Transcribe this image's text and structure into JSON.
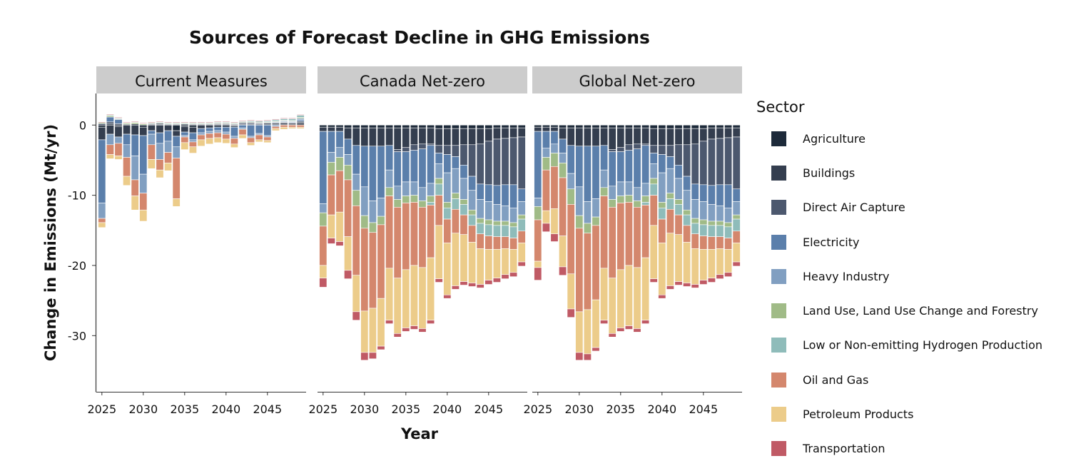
{
  "chart_data": {
    "type": "bar",
    "stacked": true,
    "title": "Sources of Forecast Decline in GHG Emissions",
    "xlabel": "Year",
    "ylabel": "Change in Emissions (Mt/yr)",
    "ylim": [
      -38,
      4.5
    ],
    "yticks": [
      0,
      -10,
      -20,
      -30
    ],
    "xticks": [
      2025,
      2030,
      2035,
      2040,
      2045
    ],
    "x": [
      2025,
      2026,
      2027,
      2028,
      2029,
      2030,
      2031,
      2032,
      2033,
      2034,
      2035,
      2036,
      2037,
      2038,
      2039,
      2040,
      2041,
      2042,
      2043,
      2044,
      2045,
      2046,
      2047,
      2048,
      2049
    ],
    "legend": {
      "title": "Sector",
      "position": "right"
    },
    "sectors": [
      {
        "name": "Agriculture",
        "color": "#1d2a3a"
      },
      {
        "name": "Buildings",
        "color": "#343e4f"
      },
      {
        "name": "Direct Air Capture",
        "color": "#4c586e"
      },
      {
        "name": "Electricity",
        "color": "#5b7fab"
      },
      {
        "name": "Heavy Industry",
        "color": "#819fc1"
      },
      {
        "name": "Land Use, Land Use Change and Forestry",
        "color": "#a0bb87"
      },
      {
        "name": "Low or Non-emitting Hydrogen Production",
        "color": "#8fbcba"
      },
      {
        "name": "Oil and Gas",
        "color": "#d4876d"
      },
      {
        "name": "Petroleum Products",
        "color": "#eccc8a"
      },
      {
        "name": "Transportation",
        "color": "#c05a65"
      }
    ],
    "panels": [
      {
        "name": "Current Measures",
        "series": [
          {
            "name": "Agriculture",
            "values": [
              -0.3,
              0.15,
              -0.2,
              0.1,
              0.15,
              -0.3,
              0.1,
              0.1,
              0.05,
              -0.8,
              -0.2,
              -0.3,
              0.05,
              0.05,
              0.1,
              0.1,
              -0.1,
              0.05,
              0.05,
              0.05,
              0.05,
              0.05,
              0.05,
              0.05,
              0.15
            ]
          },
          {
            "name": "Buildings",
            "values": [
              -1.8,
              -1.3,
              -1.5,
              -1.3,
              -1.4,
              -1.2,
              -0.8,
              -1.1,
              -0.8,
              -0.8,
              -0.8,
              -0.8,
              -0.5,
              -0.4,
              -0.3,
              -0.3,
              -0.2,
              0.15,
              0.15,
              0.15,
              0.2,
              0.2,
              0.25,
              0.2,
              0.25
            ]
          },
          {
            "name": "Direct Air Capture",
            "values": [
              0.2,
              0.3,
              0.2,
              0,
              0,
              0,
              0.1,
              0.15,
              0.1,
              0.1,
              0.15,
              0.1,
              0.1,
              0.1,
              0.1,
              0.1,
              0.1,
              0.15,
              0.15,
              0.1,
              0.1,
              0.1,
              0.1,
              0.1,
              0.15
            ]
          },
          {
            "name": "Electricity",
            "values": [
              -9,
              0.7,
              0.6,
              -1.5,
              -3,
              -5.5,
              -0.5,
              -1.5,
              -1.5,
              -1.5,
              -0.5,
              -1,
              -0.6,
              -0.5,
              -0.5,
              -0.7,
              -1.3,
              -0.4,
              -1.6,
              -1.2,
              -1.5,
              0.1,
              0.1,
              0.1,
              0.2
            ]
          },
          {
            "name": "Heavy Industry",
            "values": [
              -2.2,
              -1.5,
              -0.9,
              -1.8,
              -3.4,
              -2.7,
              -1.5,
              -2.3,
              -1.6,
              -1.6,
              -0.2,
              -0.3,
              -0.3,
              -0.3,
              -0.3,
              -0.3,
              -0.3,
              -0.2,
              -0.2,
              -0.2,
              -0.2,
              -0.2,
              0.1,
              0.1,
              0.2
            ]
          },
          {
            "name": "Land Use, Land Use Change and Forestry",
            "values": [
              0.15,
              0.2,
              0.1,
              0.15,
              0.2,
              0.15,
              0.1,
              0.1,
              0.1,
              0.1,
              0.1,
              0.1,
              0.1,
              0.1,
              0.1,
              0.1,
              0.1,
              0.1,
              0.1,
              0.1,
              0.1,
              0.1,
              0.1,
              0.1,
              0.15
            ]
          },
          {
            "name": "Low or Non-emitting Hydrogen Production",
            "values": [
              0,
              0.1,
              0.1,
              0.05,
              0.05,
              0.05,
              0.05,
              0.1,
              0.1,
              0.1,
              0.1,
              0.1,
              0.1,
              0.1,
              0.1,
              0.1,
              0.1,
              0.1,
              0.15,
              0.15,
              0.15,
              0.2,
              0.2,
              0.25,
              0.3
            ]
          },
          {
            "name": "Oil and Gas",
            "values": [
              -0.6,
              -1.4,
              -1.8,
              -2.7,
              -2.3,
              -2.4,
              -2.1,
              -1.5,
              -1.5,
              -5.8,
              -0.8,
              -0.7,
              -0.7,
              -0.7,
              -0.7,
              -0.7,
              -0.8,
              -0.8,
              -0.7,
              -0.7,
              -0.5,
              -0.3,
              -0.3,
              -0.3,
              -0.3
            ]
          },
          {
            "name": "Petroleum Products",
            "values": [
              -0.7,
              -0.6,
              -0.5,
              -1.3,
              -2,
              -1.6,
              -1.3,
              -1.1,
              -1.1,
              -1.1,
              -1,
              -0.9,
              -0.9,
              -0.8,
              -0.7,
              -0.6,
              -0.5,
              -0.5,
              -0.4,
              -0.3,
              -0.3,
              -0.3,
              -0.3,
              -0.2,
              -0.2
            ]
          },
          {
            "name": "Transportation",
            "values": [
              0.1,
              0.1,
              0.1,
              0.1,
              0.1,
              0.1,
              0.1,
              0.1,
              0.1,
              0.1,
              0.1,
              0.1,
              0.1,
              0.1,
              0.1,
              0.1,
              0.1,
              0.1,
              0.1,
              0.1,
              0.1,
              0.1,
              0.1,
              0.1,
              0.1
            ]
          }
        ]
      },
      {
        "name": "Canada Net-zero",
        "series": [
          {
            "name": "Agriculture",
            "values": [
              -0.3,
              -0.3,
              -0.3,
              -0.4,
              -0.4,
              -0.4,
              -0.4,
              -0.4,
              -0.4,
              -0.4,
              -0.4,
              -0.4,
              -0.4,
              -0.4,
              -0.5,
              -0.5,
              -0.5,
              -0.5,
              -0.5,
              -0.5,
              -0.5,
              -0.4,
              -0.4,
              -0.4,
              -0.4
            ]
          },
          {
            "name": "Buildings",
            "values": [
              -0.6,
              -0.6,
              -0.6,
              -1.6,
              -2.5,
              -2.6,
              -2.6,
              -2.6,
              -2.5,
              -3.1,
              -2.8,
              -2.4,
              -2.3,
              -2.3,
              -2.4,
              -2.4,
              -2.4,
              -2.3,
              -2.3,
              -2.2,
              -1.8,
              -1.6,
              -1.5,
              -1.4,
              -1.3
            ]
          },
          {
            "name": "Direct Air Capture",
            "values": [
              0,
              0,
              0,
              0,
              0,
              0,
              0,
              0,
              0,
              -0.3,
              -0.6,
              -0.8,
              -0.7,
              -0.2,
              -1.1,
              -1.3,
              -1.6,
              -2.9,
              -4.5,
              -5.7,
              -6.2,
              -6.6,
              -6.6,
              -6.7,
              -7.4
            ]
          },
          {
            "name": "Electricity",
            "values": [
              -10.3,
              -3,
              -2.3,
              -2.2,
              -4.1,
              -5.8,
              -7.8,
              -7.4,
              -3.5,
              -4.9,
              -4.3,
              -4.5,
              -5.5,
              -5.4,
              -1.5,
              -2.6,
              -1.7,
              -1.9,
              -2,
              -2.2,
              -2.4,
              -2.7,
              -3,
              -3.3,
              -1.8
            ]
          },
          {
            "name": "Heavy Industry",
            "values": [
              -1.3,
              -1.4,
              -1.4,
              -1.5,
              -2.3,
              -4.1,
              -3.1,
              -2.6,
              -2.5,
              -1.9,
              -2,
              -1.9,
              -1.9,
              -1.8,
              -2.1,
              -4.2,
              -3.5,
              -3,
              -2.8,
              -2.7,
              -2.6,
              -2.4,
              -2.2,
              -2.1,
              -1.9
            ]
          },
          {
            "name": "Land Use, Land Use Change and Forestry",
            "values": [
              -1.9,
              -1.8,
              -1.9,
              -2.1,
              -2.2,
              -1.8,
              -1.4,
              -1.2,
              -1.2,
              -1.1,
              -1,
              -1,
              -0.9,
              -0.9,
              -0.8,
              -0.8,
              -0.8,
              -0.7,
              -0.7,
              -0.7,
              -0.7,
              -0.6,
              -0.6,
              -0.6,
              -0.6
            ]
          },
          {
            "name": "Low or Non-emitting Hydrogen Production",
            "values": [
              0,
              0,
              0,
              0,
              0,
              0,
              0,
              0,
              0,
              0,
              0,
              0,
              0,
              -0.4,
              -1.6,
              -1.6,
              -1.5,
              -1.5,
              -1.5,
              -1.5,
              -1.6,
              -1.6,
              -1.6,
              -1.6,
              -1.7
            ]
          },
          {
            "name": "Oil and Gas",
            "values": [
              -5.6,
              -5.7,
              -5.9,
              -8.1,
              -9.9,
              -11.8,
              -10.8,
              -10.5,
              -10.3,
              -10.1,
              -9.5,
              -9,
              -8.6,
              -7.5,
              -4.3,
              -3.4,
              -3.4,
              -2.8,
              -2.4,
              -2.1,
              -1.9,
              -1.8,
              -1.7,
              -1.6,
              -1.7
            ]
          },
          {
            "name": "Petroleum Products",
            "values": [
              -1.8,
              -3.3,
              -4.2,
              -4.8,
              -5.2,
              -5.9,
              -6.3,
              -6.8,
              -7.4,
              -7.9,
              -8.3,
              -8.6,
              -8.7,
              -8.9,
              -7.6,
              -7.4,
              -7.5,
              -6.7,
              -5.8,
              -5.1,
              -4.4,
              -4.1,
              -3.7,
              -3.3,
              -2.7
            ]
          },
          {
            "name": "Transportation",
            "values": [
              -1.3,
              -0.8,
              -0.6,
              -1.2,
              -1.2,
              -1.1,
              -0.9,
              -0.5,
              -0.5,
              -0.5,
              -0.5,
              -0.5,
              -0.5,
              -0.5,
              -0.5,
              -0.5,
              -0.5,
              -0.5,
              -0.5,
              -0.5,
              -0.6,
              -0.6,
              -0.6,
              -0.6,
              -0.6
            ]
          }
        ]
      },
      {
        "name": "Global Net-zero",
        "series": [
          {
            "name": "Agriculture",
            "values": [
              -0.3,
              -0.3,
              -0.3,
              -0.4,
              -0.4,
              -0.4,
              -0.4,
              -0.4,
              -0.4,
              -0.4,
              -0.4,
              -0.4,
              -0.4,
              -0.4,
              -0.5,
              -0.5,
              -0.5,
              -0.5,
              -0.5,
              -0.5,
              -0.5,
              -0.4,
              -0.4,
              -0.4,
              -0.4
            ]
          },
          {
            "name": "Buildings",
            "values": [
              -0.6,
              -0.6,
              -0.6,
              -1.6,
              -2.5,
              -2.6,
              -2.6,
              -2.6,
              -2.5,
              -3.1,
              -2.8,
              -2.4,
              -2.3,
              -2.3,
              -2.4,
              -2.4,
              -2.4,
              -2.3,
              -2.3,
              -2.2,
              -1.8,
              -1.6,
              -1.5,
              -1.4,
              -1.3
            ]
          },
          {
            "name": "Direct Air Capture",
            "values": [
              0,
              0,
              0,
              0,
              0,
              0,
              0,
              0,
              0,
              -0.3,
              -0.6,
              -0.8,
              -0.7,
              -0.2,
              -1.1,
              -1.3,
              -1.6,
              -2.9,
              -4.5,
              -5.7,
              -6.2,
              -6.6,
              -6.6,
              -6.7,
              -7.4
            ]
          },
          {
            "name": "Electricity",
            "values": [
              -9.5,
              -2.4,
              -1.8,
              -2,
              -4,
              -5.8,
              -7.9,
              -7.5,
              -3.5,
              -4.9,
              -4.3,
              -4.5,
              -5.5,
              -5.4,
              -1.5,
              -2.6,
              -1.7,
              -1.9,
              -2,
              -2.2,
              -2.4,
              -2.7,
              -3,
              -3.3,
              -1.8
            ]
          },
          {
            "name": "Heavy Industry",
            "values": [
              -1.2,
              -1.3,
              -1.3,
              -1.4,
              -2.2,
              -4.1,
              -3.1,
              -2.6,
              -2.5,
              -1.9,
              -2,
              -1.9,
              -1.9,
              -1.8,
              -2.1,
              -4.2,
              -3.5,
              -3,
              -2.8,
              -2.7,
              -2.6,
              -2.4,
              -2.2,
              -2.1,
              -1.9
            ]
          },
          {
            "name": "Land Use, Land Use Change and Forestry",
            "values": [
              -1.9,
              -1.8,
              -1.9,
              -2.1,
              -2.2,
              -1.8,
              -1.4,
              -1.2,
              -1.2,
              -1.1,
              -1,
              -1,
              -0.9,
              -0.9,
              -0.8,
              -0.8,
              -0.8,
              -0.7,
              -0.7,
              -0.7,
              -0.7,
              -0.6,
              -0.6,
              -0.6,
              -0.6
            ]
          },
          {
            "name": "Low or Non-emitting Hydrogen Production",
            "values": [
              0,
              0,
              0,
              0,
              0,
              0,
              0,
              0,
              0,
              0,
              0,
              0,
              0,
              -0.4,
              -1.6,
              -1.6,
              -1.5,
              -1.5,
              -1.5,
              -1.5,
              -1.6,
              -1.6,
              -1.6,
              -1.6,
              -1.7
            ]
          },
          {
            "name": "Oil and Gas",
            "values": [
              -5.9,
              -5.8,
              -6,
              -8.3,
              -9.9,
              -11.9,
              -10.9,
              -10.6,
              -10.3,
              -10.1,
              -9.5,
              -9,
              -8.6,
              -7.5,
              -4.3,
              -3.4,
              -3.4,
              -2.8,
              -2.4,
              -2.1,
              -1.9,
              -1.8,
              -1.7,
              -1.6,
              -1.7
            ]
          },
          {
            "name": "Petroleum Products",
            "values": [
              -0.9,
              -1.8,
              -3.6,
              -4.4,
              -5,
              -5.8,
              -6.3,
              -6.8,
              -7.4,
              -7.9,
              -8.3,
              -8.6,
              -8.7,
              -8.9,
              -7.6,
              -7.4,
              -7.5,
              -6.7,
              -5.8,
              -5.1,
              -4.4,
              -4.1,
              -3.7,
              -3.3,
              -2.7
            ]
          },
          {
            "name": "Transportation",
            "values": [
              -1.8,
              -1.2,
              -1.1,
              -1.2,
              -1.2,
              -1.1,
              -0.9,
              -0.5,
              -0.5,
              -0.5,
              -0.5,
              -0.5,
              -0.5,
              -0.5,
              -0.5,
              -0.5,
              -0.5,
              -0.5,
              -0.5,
              -0.5,
              -0.6,
              -0.6,
              -0.6,
              -0.6,
              -0.6
            ]
          }
        ]
      }
    ]
  }
}
